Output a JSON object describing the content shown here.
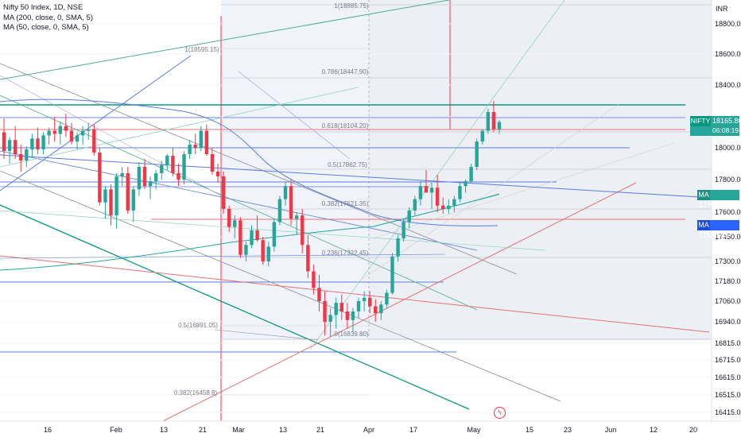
{
  "chart": {
    "legend": [
      "Nifty 50 Index, 1D, NSE",
      "MA (200, close, 0, SMA, 5)",
      "MA (50, close, 0, SMA, 5)"
    ],
    "currency": "INR",
    "price_tag": {
      "symbol": "NIFTY",
      "price": "18165.80",
      "countdown": "06:08:19"
    },
    "ma_tags": [
      {
        "label": "MA",
        "value": "17706.40",
        "color": "#26a69a"
      },
      {
        "label": "MA",
        "value": "17528.95",
        "color": "#2962ff"
      }
    ],
    "y_axis_labels": [
      "18800.00",
      "18600.00",
      "18400.00",
      "18200.00",
      "18000.00",
      "17800.00",
      "17600.00",
      "17450.00",
      "17300.00",
      "17180.00",
      "17060.00",
      "16940.00",
      "16815.00",
      "16715.00",
      "16615.00",
      "16515.00",
      "16415.00"
    ],
    "x_axis_labels": [
      "16",
      "Feb",
      "13",
      "21",
      "Mar",
      "13",
      "21",
      "Apr",
      "17",
      "May",
      "15",
      "23",
      "Jun",
      "12",
      "20"
    ],
    "fib_labels": [
      "1(18885.75)",
      "1(18595.15)",
      "0.786(18447.90)",
      "0.618(18104.20)",
      "0.5(17862.75)",
      "0.382(17621.35)",
      "0.236(17322.45)",
      "0.5(16891.05)",
      "0(16839.80)",
      "0.382(16458.8)"
    ],
    "event_icon": "flash-icon"
  },
  "chart_data": {
    "type": "candlestick",
    "title": "Nifty 50 Index, 1D, NSE",
    "unit": "INR",
    "last_price": 18165.8,
    "ylim": [
      16400,
      18900
    ],
    "x": [
      "Jan 16",
      "Feb",
      "Feb 13",
      "Feb 21",
      "Mar",
      "Mar 13",
      "Mar 21",
      "Apr",
      "Apr 17",
      "May",
      "May 15",
      "May 23",
      "Jun",
      "Jun 12",
      "Jun 20"
    ],
    "candles_ohlc": [
      [
        18100,
        18190,
        17930,
        17980
      ],
      [
        17980,
        18070,
        17900,
        18050
      ],
      [
        18050,
        18140,
        17930,
        17960
      ],
      [
        17960,
        18020,
        17850,
        17920
      ],
      [
        17920,
        18010,
        17880,
        17990
      ],
      [
        17990,
        18090,
        17940,
        18060
      ],
      [
        18060,
        18130,
        17960,
        17990
      ],
      [
        17990,
        18100,
        17960,
        18080
      ],
      [
        18080,
        18130,
        18020,
        18110
      ],
      [
        18110,
        18200,
        18040,
        18090
      ],
      [
        18090,
        18170,
        18020,
        18140
      ],
      [
        18140,
        18220,
        18070,
        18110
      ],
      [
        18110,
        18160,
        18020,
        18040
      ],
      [
        18040,
        18100,
        17990,
        18080
      ],
      [
        18080,
        18140,
        18020,
        18110
      ],
      [
        18110,
        18160,
        18050,
        18120
      ],
      [
        18120,
        18150,
        17950,
        17970
      ],
      [
        17970,
        18000,
        17640,
        17660
      ],
      [
        17660,
        17760,
        17560,
        17740
      ],
      [
        17740,
        17770,
        17520,
        17580
      ],
      [
        17580,
        17840,
        17500,
        17820
      ],
      [
        17820,
        17880,
        17760,
        17840
      ],
      [
        17840,
        17880,
        17590,
        17610
      ],
      [
        17610,
        17760,
        17540,
        17740
      ],
      [
        17740,
        17910,
        17700,
        17880
      ],
      [
        17880,
        17930,
        17740,
        17760
      ],
      [
        17760,
        17820,
        17680,
        17790
      ],
      [
        17790,
        17860,
        17740,
        17840
      ],
      [
        17840,
        17920,
        17800,
        17890
      ],
      [
        17890,
        17960,
        17860,
        17950
      ],
      [
        17950,
        18000,
        17820,
        17840
      ],
      [
        17840,
        17900,
        17760,
        17800
      ],
      [
        17800,
        17980,
        17770,
        17960
      ],
      [
        17960,
        18050,
        17930,
        18020
      ],
      [
        18020,
        18090,
        17960,
        18000
      ],
      [
        18000,
        18140,
        17980,
        18110
      ],
      [
        18110,
        18150,
        17950,
        17960
      ],
      [
        17960,
        18000,
        17830,
        17850
      ],
      [
        17850,
        17900,
        17780,
        17820
      ],
      [
        17820,
        17850,
        17590,
        17620
      ],
      [
        17620,
        17640,
        17480,
        17510
      ],
      [
        17510,
        17580,
        17440,
        17550
      ],
      [
        17550,
        17570,
        17320,
        17340
      ],
      [
        17340,
        17420,
        17300,
        17400
      ],
      [
        17400,
        17520,
        17380,
        17490
      ],
      [
        17490,
        17580,
        17420,
        17430
      ],
      [
        17430,
        17450,
        17280,
        17300
      ],
      [
        17300,
        17420,
        17270,
        17390
      ],
      [
        17390,
        17560,
        17360,
        17540
      ],
      [
        17540,
        17700,
        17520,
        17680
      ],
      [
        17680,
        17790,
        17640,
        17760
      ],
      [
        17760,
        17800,
        17520,
        17560
      ],
      [
        17560,
        17600,
        17460,
        17580
      ],
      [
        17580,
        17620,
        17350,
        17400
      ],
      [
        17400,
        17460,
        17200,
        17240
      ],
      [
        17240,
        17280,
        17100,
        17140
      ],
      [
        17140,
        17220,
        17000,
        17060
      ],
      [
        17060,
        17120,
        16860,
        16940
      ],
      [
        16940,
        17020,
        16850,
        16980
      ],
      [
        16980,
        17080,
        16900,
        17050
      ],
      [
        17050,
        17100,
        16950,
        17000
      ],
      [
        17000,
        17050,
        16900,
        16950
      ],
      [
        16950,
        17020,
        16880,
        17000
      ],
      [
        17000,
        17080,
        16960,
        17060
      ],
      [
        17060,
        17120,
        17000,
        17080
      ],
      [
        17080,
        17120,
        16990,
        17030
      ],
      [
        17030,
        17070,
        16940,
        16990
      ],
      [
        16990,
        17060,
        16950,
        17040
      ],
      [
        17040,
        17130,
        17020,
        17110
      ],
      [
        17110,
        17350,
        17100,
        17330
      ],
      [
        17330,
        17460,
        17300,
        17440
      ],
      [
        17440,
        17560,
        17420,
        17540
      ],
      [
        17540,
        17630,
        17500,
        17610
      ],
      [
        17610,
        17700,
        17580,
        17680
      ],
      [
        17680,
        17790,
        17640,
        17760
      ],
      [
        17760,
        17860,
        17720,
        17720
      ],
      [
        17720,
        17780,
        17620,
        17750
      ],
      [
        17750,
        17830,
        17600,
        17640
      ],
      [
        17640,
        17690,
        17590,
        17620
      ],
      [
        17620,
        17680,
        17590,
        17640
      ],
      [
        17640,
        17700,
        17600,
        17680
      ],
      [
        17680,
        17780,
        17660,
        17760
      ],
      [
        17760,
        17800,
        17720,
        17790
      ],
      [
        17790,
        17900,
        17780,
        17880
      ],
      [
        17880,
        18060,
        17860,
        18040
      ],
      [
        18040,
        18120,
        18020,
        18110
      ],
      [
        18110,
        18250,
        18090,
        18230
      ],
      [
        18230,
        18300,
        18100,
        18120
      ],
      [
        18120,
        18180,
        18090,
        18165.8
      ]
    ],
    "horizontal_levels": [
      18265,
      18185,
      18104.2,
      18000,
      17862.75,
      17621.35,
      17528.95,
      17322.45
    ],
    "fibonacci_levels": [
      {
        "ratio": "1",
        "price": 18885.75
      },
      {
        "ratio": "0.786",
        "price": 18447.9
      },
      {
        "ratio": "0.618",
        "price": 18104.2
      },
      {
        "ratio": "0.5",
        "price": 17862.75
      },
      {
        "ratio": "0.382",
        "price": 17621.35
      },
      {
        "ratio": "0.236",
        "price": 17322.45
      },
      {
        "ratio": "0",
        "price": 16839.8
      }
    ],
    "series": [
      {
        "name": "MA (200, close, 0, SMA, 5)",
        "last": 17706.4
      },
      {
        "name": "MA (50, close, 0, SMA, 5)",
        "last": 17528.95
      }
    ]
  }
}
